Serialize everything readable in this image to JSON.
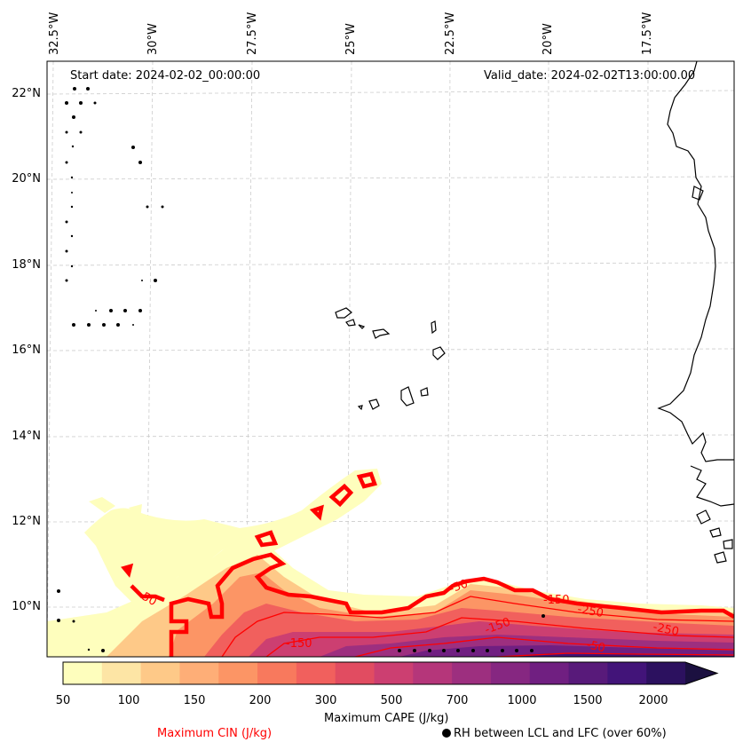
{
  "header": {
    "start_date": "Start date: 2024-02-02_00:00:00",
    "valid_date": "Valid_date: 2024-02-02T13:00:00.00"
  },
  "lon_labels": [
    "32.5°W",
    "30°W",
    "27.5°W",
    "25°W",
    "22.5°W",
    "20°W",
    "17.5°W"
  ],
  "lat_labels": [
    "22°N",
    "20°N",
    "18°N",
    "16°N",
    "14°N",
    "12°N",
    "10°N"
  ],
  "contour_labels": [
    "-50",
    "-150",
    "-50",
    "-150",
    "-150",
    "-250",
    "-250",
    "-50"
  ],
  "colorbar": {
    "title": "Maximum CAPE (J/kg)",
    "ticks": [
      "50",
      "100",
      "150",
      "200",
      "300",
      "500",
      "700",
      "1000",
      "1500",
      "2000"
    ],
    "colors": [
      "#fefebd",
      "#fde5a5",
      "#fec988",
      "#feae77",
      "#fc9565",
      "#f8795d",
      "#f1605d",
      "#e14c61",
      "#cc3f71",
      "#b5367a",
      "#9d2f7f",
      "#862781",
      "#701f81",
      "#581a7a",
      "#421479",
      "#2c115f",
      "#1b1040"
    ]
  },
  "legend": {
    "cin_label": "Maximum CIN (J/kg)",
    "rh_label": "RH between LCL and LFC (over 60%)",
    "cin_color": "#ff0000"
  }
}
